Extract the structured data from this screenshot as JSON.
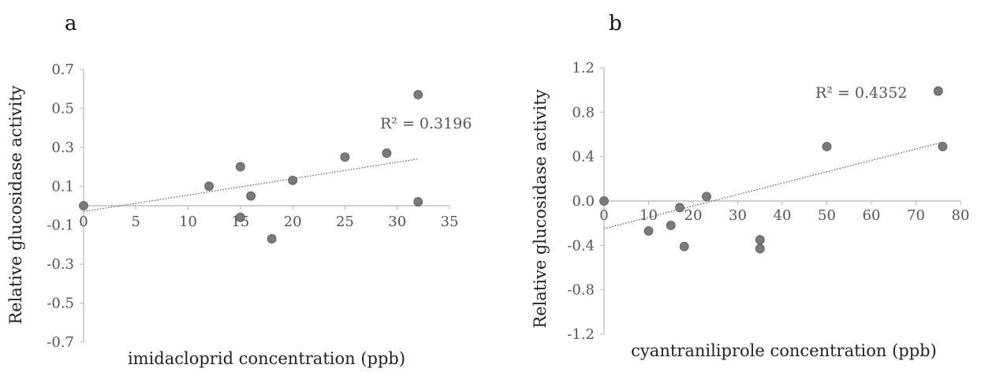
{
  "chart_data": [
    {
      "type": "scatter",
      "panel_label": "a",
      "xlabel": "imidacloprid concentration (ppb)",
      "ylabel": "Relative glucosidase activity",
      "xlim": [
        0,
        35
      ],
      "ylim": [
        -0.7,
        0.7
      ],
      "xticks": [
        0,
        5,
        10,
        15,
        20,
        25,
        30,
        35
      ],
      "yticks": [
        0.7,
        0.5,
        0.3,
        0.1,
        -0.1,
        -0.3,
        -0.5,
        -0.7
      ],
      "xtick_labels": [
        "0",
        "5",
        "10",
        "15",
        "20",
        "25",
        "30",
        "35"
      ],
      "ytick_labels": [
        "0.7",
        "0.5",
        "0.3",
        "0.1",
        "-0.1",
        "-0.3",
        "-0.5",
        "-0.7"
      ],
      "points": [
        {
          "x": 0,
          "y": 0.0
        },
        {
          "x": 12,
          "y": 0.1
        },
        {
          "x": 15,
          "y": 0.2
        },
        {
          "x": 15,
          "y": -0.06
        },
        {
          "x": 16,
          "y": 0.05
        },
        {
          "x": 18,
          "y": -0.17
        },
        {
          "x": 20,
          "y": 0.13
        },
        {
          "x": 25,
          "y": 0.25
        },
        {
          "x": 29,
          "y": 0.27
        },
        {
          "x": 32,
          "y": 0.57
        },
        {
          "x": 32,
          "y": 0.02
        }
      ],
      "trendline": {
        "x": [
          0,
          32
        ],
        "y": [
          -0.03,
          0.24
        ],
        "style": "dotted"
      },
      "annotation": "R² = 0.3196",
      "marker_color": "#7a7a7a"
    },
    {
      "type": "scatter",
      "panel_label": "b",
      "xlabel": "cyantraniliprole concentration (ppb)",
      "ylabel": "Relative glucosidase activity",
      "xlim": [
        0,
        80
      ],
      "ylim": [
        -1.2,
        1.2
      ],
      "xticks": [
        0,
        10,
        20,
        30,
        40,
        50,
        60,
        70,
        80
      ],
      "yticks": [
        1.2,
        0.8,
        0.4,
        0.0,
        -0.4,
        -0.8,
        -1.2
      ],
      "xtick_labels": [
        "0",
        "10",
        "20",
        "30",
        "40",
        "50",
        "60",
        "70",
        "80"
      ],
      "ytick_labels": [
        "1.2",
        "0.8",
        "0.4",
        "0.0",
        "-0.4",
        "-0.8",
        "-1.2"
      ],
      "points": [
        {
          "x": 0,
          "y": 0.0
        },
        {
          "x": 10,
          "y": -0.27
        },
        {
          "x": 15,
          "y": -0.22
        },
        {
          "x": 17,
          "y": -0.06
        },
        {
          "x": 18,
          "y": -0.41
        },
        {
          "x": 23,
          "y": 0.04
        },
        {
          "x": 35,
          "y": -0.35
        },
        {
          "x": 35,
          "y": -0.43
        },
        {
          "x": 50,
          "y": 0.49
        },
        {
          "x": 75,
          "y": 0.99
        },
        {
          "x": 76,
          "y": 0.49
        }
      ],
      "trendline": {
        "x": [
          0,
          76
        ],
        "y": [
          -0.25,
          0.53
        ],
        "style": "dotted"
      },
      "annotation": "R² = 0.4352",
      "marker_color": "#7a7a7a"
    }
  ]
}
